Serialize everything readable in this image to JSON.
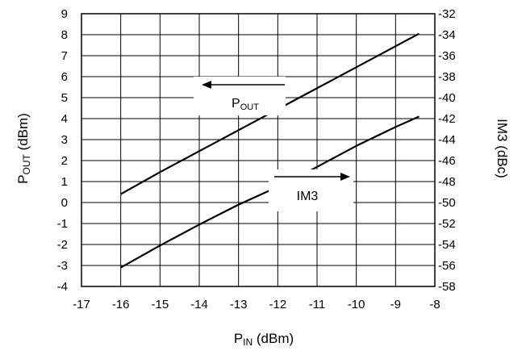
{
  "chart_data": {
    "type": "line",
    "xlabel": {
      "main": "P",
      "sub": "IN",
      "unit": " (dBm)"
    },
    "ylabel_left": {
      "main": "P",
      "sub": "OUT",
      "unit": " (dBm)"
    },
    "ylabel_right": "IM3 (dBc)",
    "x_range": [
      -17,
      -8
    ],
    "y_left_range": [
      -4,
      9
    ],
    "y_right_range": [
      -58,
      -32
    ],
    "x_ticks": [
      -17,
      -16,
      -15,
      -14,
      -13,
      -12,
      -11,
      -10,
      -9,
      -8
    ],
    "y_left_ticks": [
      -4,
      -3,
      -2,
      -1,
      0,
      1,
      2,
      3,
      4,
      5,
      6,
      7,
      8,
      9
    ],
    "y_right_ticks": [
      -58,
      -56,
      -54,
      -52,
      -50,
      -48,
      -46,
      -44,
      -42,
      -40,
      -38,
      -36,
      -34,
      -32
    ],
    "grid": true,
    "series": [
      {
        "name": "POUT",
        "axis": "left",
        "points": [
          [
            -16,
            0.4
          ],
          [
            -15,
            1.45
          ],
          [
            -14,
            2.45
          ],
          [
            -13,
            3.45
          ],
          [
            -12,
            4.45
          ],
          [
            -11,
            5.45
          ],
          [
            -10,
            6.45
          ],
          [
            -9,
            7.45
          ],
          [
            -8.4,
            8.05
          ]
        ]
      },
      {
        "name": "IM3",
        "axis": "right",
        "points": [
          [
            -16,
            -56.2
          ],
          [
            -15,
            -54.1
          ],
          [
            -14,
            -52.1
          ],
          [
            -13,
            -50.2
          ],
          [
            -12,
            -48.5
          ],
          [
            -11.5,
            -47.6
          ],
          [
            -11,
            -46.6
          ],
          [
            -10,
            -44.6
          ],
          [
            -9,
            -42.8
          ],
          [
            -8.4,
            -41.8
          ]
        ]
      }
    ],
    "annotations": [
      {
        "name": "pout-label",
        "main": "P",
        "sub": "OUT",
        "arrow": "left"
      },
      {
        "name": "im3-label",
        "text": "IM3",
        "arrow": "right"
      }
    ]
  }
}
